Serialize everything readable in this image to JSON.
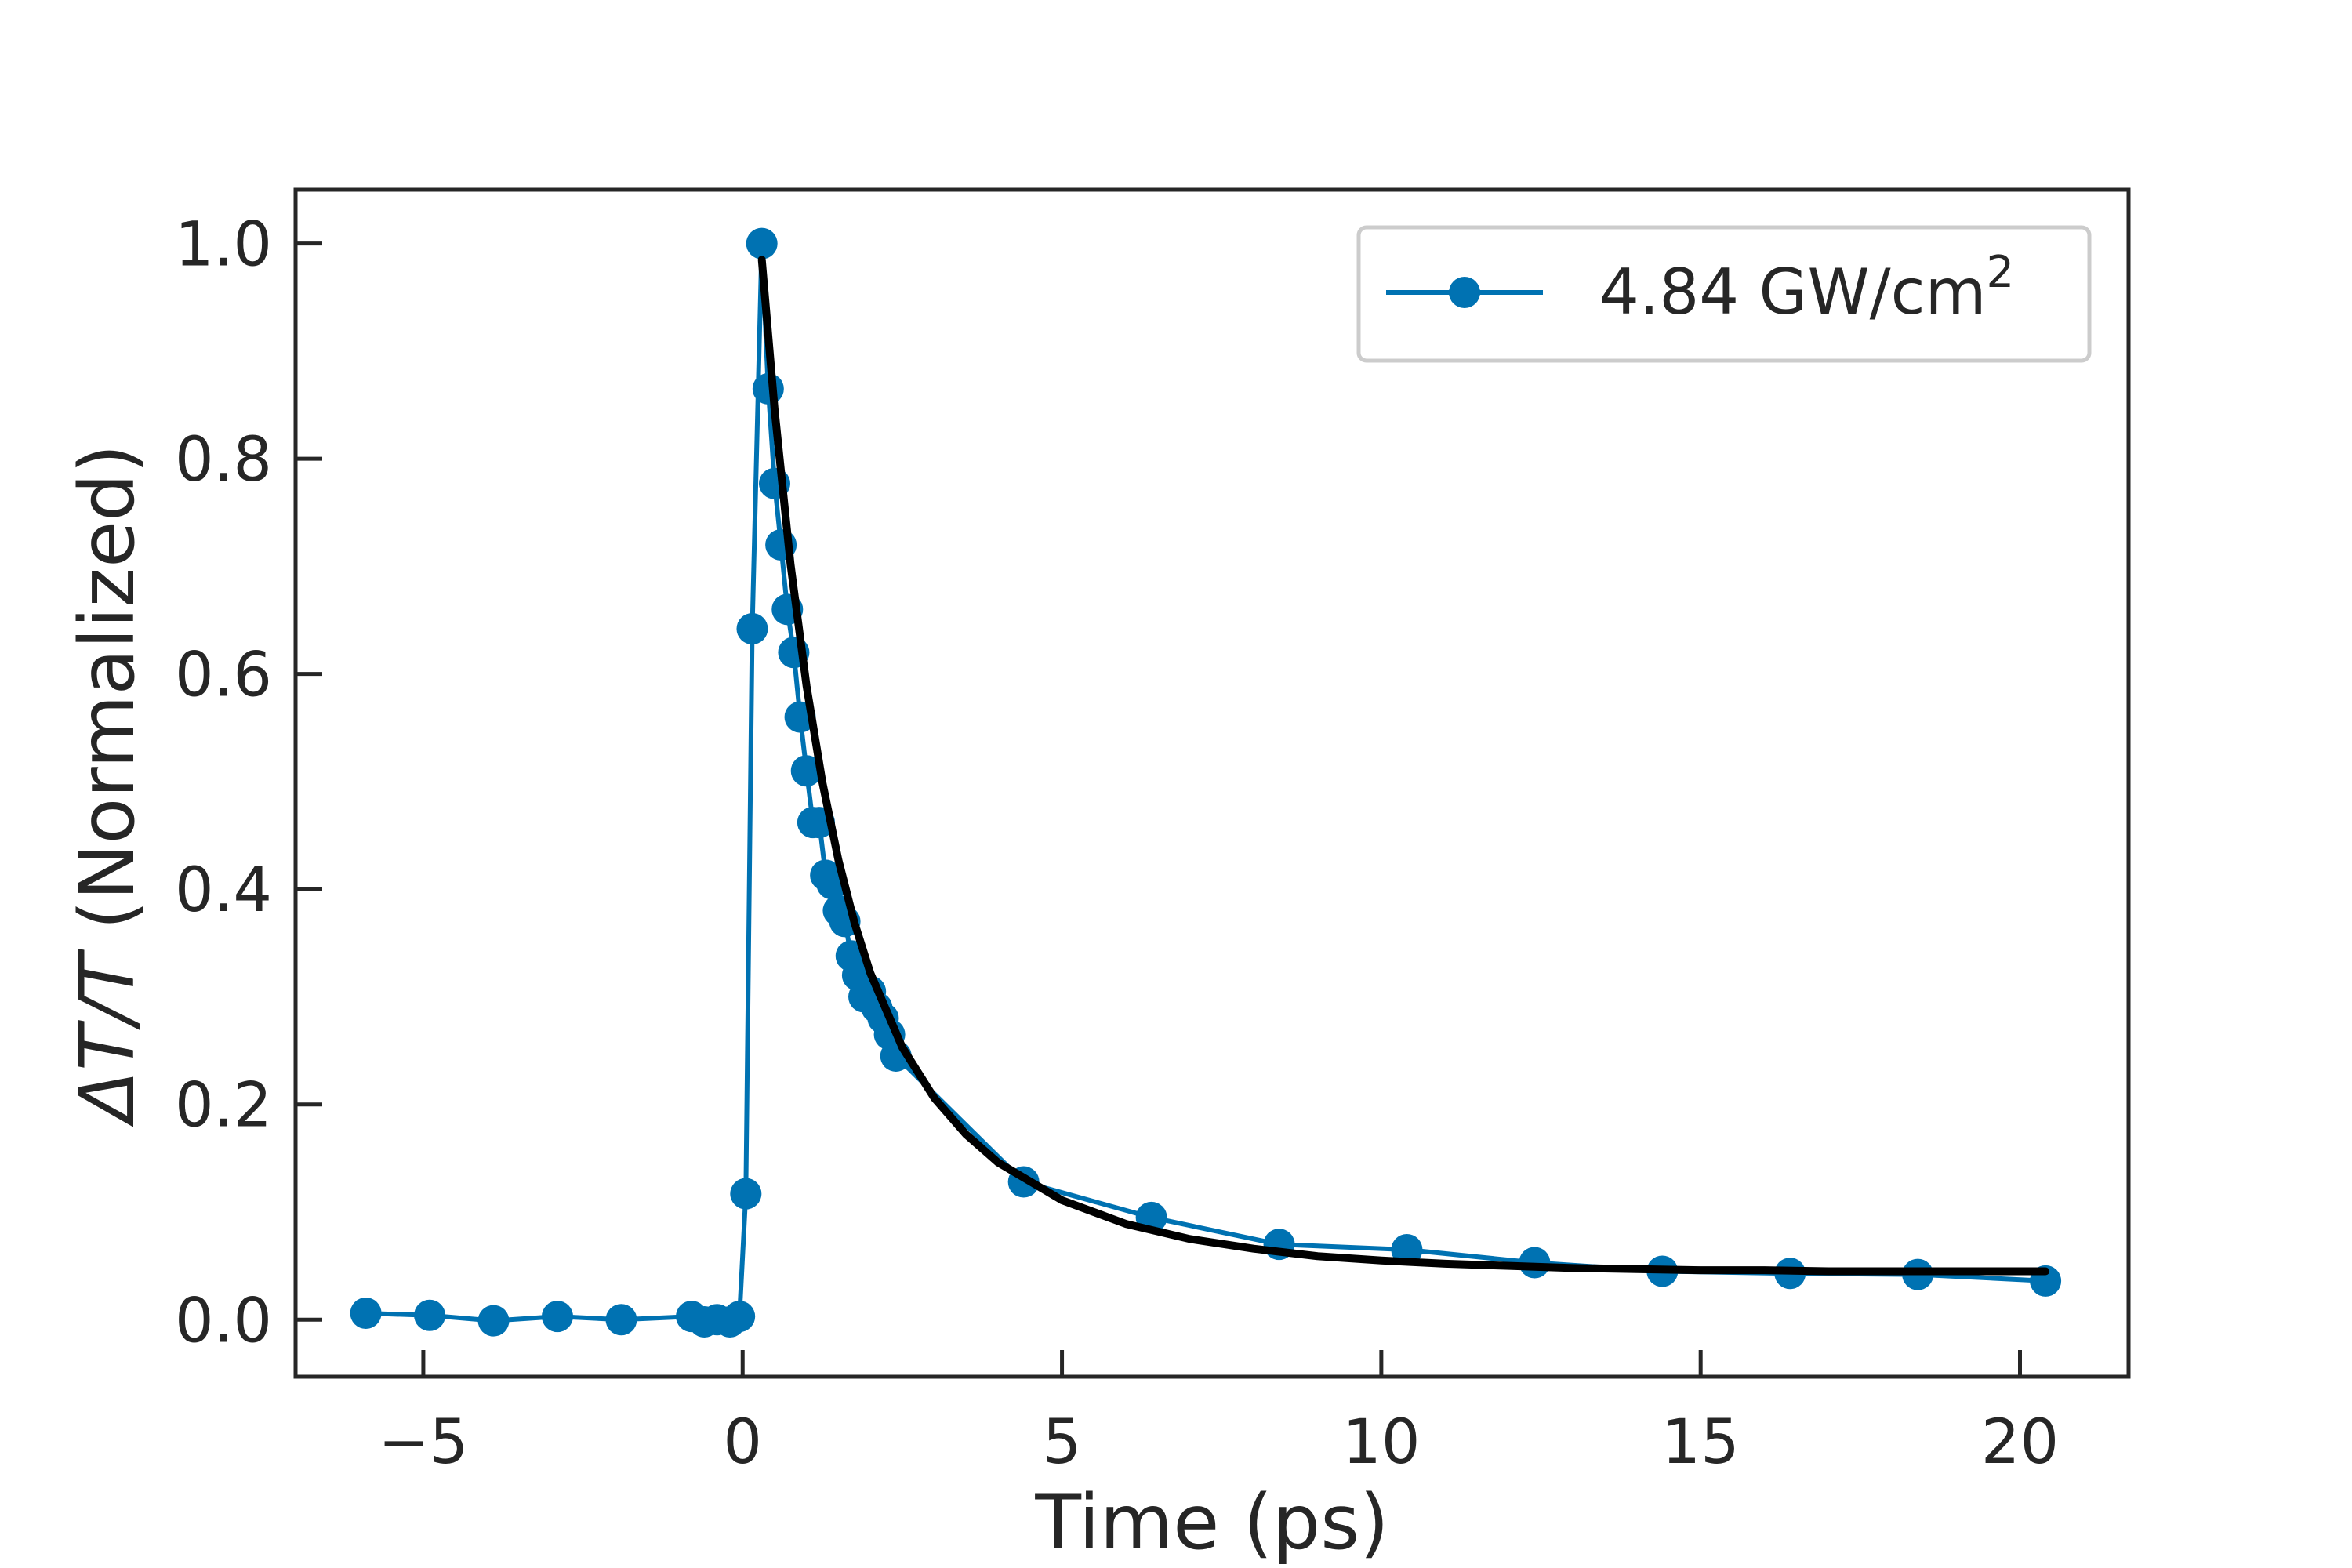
{
  "chart_data": {
    "type": "line",
    "xlabel": "Time (ps)",
    "ylabel_symbol": "ΔT/T",
    "ylabel_rest": " (Normalized)",
    "xlim": [
      -7.0,
      21.7
    ],
    "ylim": [
      -0.053,
      1.05
    ],
    "x_ticks": [
      -5,
      0,
      5,
      10,
      15,
      20
    ],
    "x_tick_labels": [
      "−5",
      "0",
      "5",
      "10",
      "15",
      "20"
    ],
    "y_ticks": [
      0.0,
      0.2,
      0.4,
      0.6,
      0.8,
      1.0
    ],
    "y_tick_labels": [
      "0.0",
      "0.2",
      "0.4",
      "0.6",
      "0.8",
      "1.0"
    ],
    "grid": false,
    "legend_position": "top-right",
    "series": [
      {
        "name": "4.84 GW/cm",
        "name_superscript": "2",
        "color": "#0072b2",
        "marker": "circle",
        "x": [
          -5.9,
          -4.9,
          -3.9,
          -2.9,
          -1.9,
          -0.8,
          -0.6,
          -0.4,
          -0.2,
          -0.05,
          0.05,
          0.15,
          0.3,
          0.4,
          0.5,
          0.6,
          0.7,
          0.8,
          0.9,
          1.0,
          1.1,
          1.2,
          1.3,
          1.4,
          1.5,
          1.6,
          1.7,
          1.8,
          1.9,
          2.0,
          2.1,
          2.2,
          2.3,
          2.4,
          4.4,
          6.4,
          8.4,
          10.4,
          12.4,
          14.4,
          16.4,
          18.4,
          20.4
        ],
        "y": [
          0.006,
          0.004,
          -0.001,
          0.003,
          0.0,
          0.003,
          -0.002,
          0.0,
          -0.002,
          0.003,
          0.117,
          0.642,
          1.0,
          0.865,
          0.777,
          0.72,
          0.66,
          0.62,
          0.56,
          0.51,
          0.462,
          0.462,
          0.413,
          0.405,
          0.38,
          0.37,
          0.338,
          0.32,
          0.3,
          0.305,
          0.29,
          0.28,
          0.265,
          0.245,
          0.128,
          0.095,
          0.07,
          0.065,
          0.053,
          0.045,
          0.043,
          0.042,
          0.036
        ]
      }
    ],
    "fit": {
      "color": "#000000",
      "x": [
        0.3,
        0.5,
        0.75,
        1.0,
        1.25,
        1.5,
        1.75,
        2.0,
        2.5,
        3.0,
        3.5,
        4.0,
        5.0,
        6.0,
        7.0,
        8.0,
        9.0,
        10.0,
        11.0,
        12.0,
        13.0,
        14.0,
        15.0,
        16.0,
        17.0,
        18.0,
        19.0,
        20.0,
        20.4
      ],
      "y": [
        0.985,
        0.846,
        0.702,
        0.589,
        0.499,
        0.427,
        0.369,
        0.322,
        0.253,
        0.206,
        0.172,
        0.146,
        0.111,
        0.089,
        0.075,
        0.066,
        0.059,
        0.055,
        0.052,
        0.05,
        0.048,
        0.047,
        0.046,
        0.046,
        0.045,
        0.045,
        0.045,
        0.045,
        0.045
      ]
    }
  }
}
